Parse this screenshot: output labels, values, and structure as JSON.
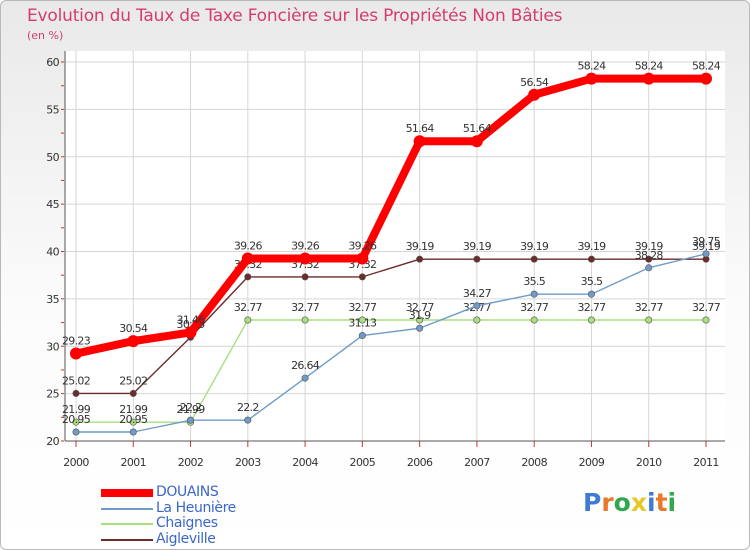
{
  "chart_data": {
    "type": "line",
    "title": "Evolution du Taux de Taxe Foncière sur les Propriétés Non Bâties",
    "ylabel": "(en %)",
    "xlabel": "",
    "ylim": [
      20,
      60
    ],
    "yticks": [
      20,
      25,
      30,
      35,
      40,
      45,
      50,
      55,
      60
    ],
    "categories": [
      "2000",
      "2001",
      "2002",
      "2003",
      "2004",
      "2005",
      "2006",
      "2007",
      "2008",
      "2009",
      "2010",
      "2011"
    ],
    "series": [
      {
        "name": "DOUAINS",
        "color": "#ff0000",
        "values": [
          29.23,
          30.54,
          31.46,
          39.26,
          39.26,
          39.26,
          51.64,
          51.64,
          56.54,
          58.24,
          58.24,
          58.24
        ]
      },
      {
        "name": "La Heunière",
        "color": "#6f9bc9",
        "values": [
          20.95,
          20.95,
          22.2,
          22.2,
          26.64,
          31.13,
          31.9,
          34.27,
          35.5,
          35.5,
          38.28,
          39.75
        ]
      },
      {
        "name": "Chaignes",
        "color": "#a8e07e",
        "values": [
          21.99,
          21.99,
          21.99,
          32.77,
          32.77,
          32.77,
          32.77,
          32.77,
          32.77,
          32.77,
          32.77,
          32.77
        ]
      },
      {
        "name": "Aigleville",
        "color": "#6b2c2c",
        "values": [
          25.02,
          25.02,
          30.95,
          37.32,
          37.32,
          37.32,
          39.19,
          39.19,
          39.19,
          39.19,
          39.19,
          39.19
        ]
      }
    ]
  },
  "branding": {
    "logo_letters": [
      "P",
      "r",
      "o",
      "x",
      "i",
      "t",
      "i"
    ],
    "logo_colors": [
      "#3f7bd6",
      "#e8782a",
      "#2fa84f",
      "#e8c72a",
      "#3f7bd6",
      "#e8782a",
      "#2fa84f"
    ]
  }
}
